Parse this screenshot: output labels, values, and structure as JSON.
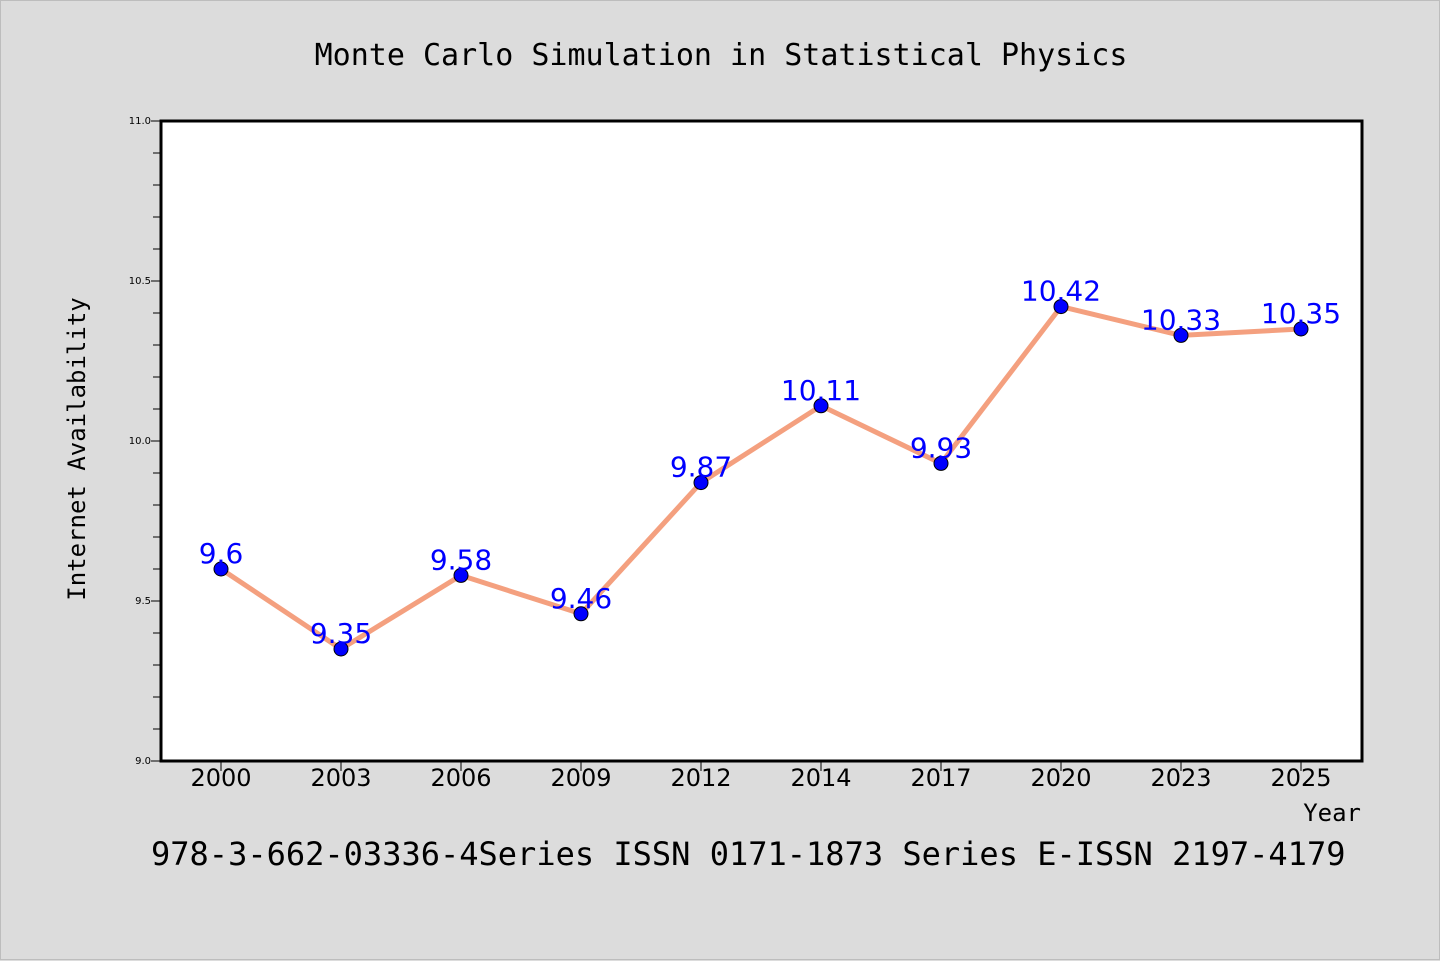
{
  "chart_data": {
    "type": "line",
    "title": "Monte Carlo Simulation in Statistical Physics",
    "xlabel": "Year",
    "ylabel": "Internet Availability",
    "categories": [
      "2000",
      "2003",
      "2006",
      "2009",
      "2012",
      "2014",
      "2017",
      "2020",
      "2023",
      "2025"
    ],
    "series": [
      {
        "values": [
          9.6,
          9.35,
          9.58,
          9.46,
          9.87,
          10.11,
          9.93,
          10.42,
          10.33,
          10.35
        ],
        "value_labels": [
          "9.6",
          "9.35",
          "9.58",
          "9.46",
          "9.87",
          "10.11",
          "9.93",
          "10.42",
          "10.33",
          "10.35"
        ]
      }
    ],
    "ylim": [
      9.0,
      11.0
    ],
    "yticks": [
      "9.0",
      "9.5",
      "10.0",
      "10.5",
      "11.0"
    ],
    "grid": false,
    "colors": {
      "line": "#f4a07f",
      "marker": "#0000ff",
      "label": "#0000ff",
      "background": "#dcdcdc",
      "plot_bg": "#ffffff"
    }
  },
  "footer": {
    "text": "978-3-662-03336-4Series ISSN 0171-1873 Series E-ISSN 2197-4179"
  }
}
